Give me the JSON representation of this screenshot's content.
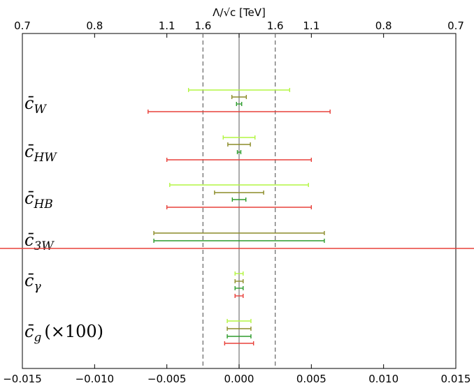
{
  "chart_data": {
    "type": "errorbar",
    "top_axis_title": "Λ/√c [TeV]",
    "top_tick_labels": [
      {
        "x": -0.015,
        "label": "0.7"
      },
      {
        "x": -0.01,
        "label": "0.8"
      },
      {
        "x": -0.005,
        "label": "1.1"
      },
      {
        "x": -0.0025,
        "label": "1.6"
      },
      {
        "x": 0.0025,
        "label": "1.6"
      },
      {
        "x": 0.005,
        "label": "1.1"
      },
      {
        "x": 0.01,
        "label": "0.8"
      },
      {
        "x": 0.015,
        "label": "0.7"
      }
    ],
    "bottom_ticks": [
      -0.015,
      -0.01,
      -0.005,
      0.0,
      0.005,
      0.01,
      0.015
    ],
    "bottom_tick_labels": [
      "−0.015",
      "−0.010",
      "−0.005",
      "0.000",
      "0.005",
      "0.010",
      "0.015"
    ],
    "xlim": [
      -0.015,
      0.015
    ],
    "dashed_lines": [
      -0.0025,
      0.0025
    ],
    "zero_line": 0.0,
    "colors": {
      "lightgreen": "#b3f542",
      "olive": "#8c8c28",
      "green": "#2d9c2d",
      "red": "#e8403a",
      "zero_line": "#808080",
      "dashed": "#707070"
    },
    "groups": [
      {
        "label_main": "c̄",
        "label_sub": "W",
        "label_suffix": "",
        "bars": [
          {
            "color": "lightgreen",
            "lo": -0.0035,
            "hi": 0.0035
          },
          {
            "color": "olive",
            "lo": -0.0005,
            "hi": 0.0005
          },
          {
            "color": "green",
            "lo": -0.00018,
            "hi": 0.00018
          },
          {
            "color": "red",
            "lo": -0.0063,
            "hi": 0.0063
          }
        ]
      },
      {
        "label_main": "c̄",
        "label_sub": "HW",
        "label_suffix": "",
        "bars": [
          {
            "color": "lightgreen",
            "lo": -0.0011,
            "hi": 0.0011
          },
          {
            "color": "olive",
            "lo": -0.00078,
            "hi": 0.00078
          },
          {
            "color": "green",
            "lo": -0.00012,
            "hi": 0.00012
          },
          {
            "color": "red",
            "lo": -0.005,
            "hi": 0.005
          }
        ]
      },
      {
        "label_main": "c̄",
        "label_sub": "HB",
        "label_suffix": "",
        "bars": [
          {
            "color": "lightgreen",
            "lo": -0.0048,
            "hi": 0.0048
          },
          {
            "color": "olive",
            "lo": -0.0017,
            "hi": 0.0017
          },
          {
            "color": "green",
            "lo": -0.00047,
            "hi": 0.00047
          },
          {
            "color": "red",
            "lo": -0.005,
            "hi": 0.005
          }
        ]
      },
      {
        "label_main": "c̄",
        "label_sub": "3W",
        "label_suffix": "",
        "bars": [
          {
            "color": "olive",
            "lo": -0.0059,
            "hi": 0.0059
          },
          {
            "color": "green",
            "lo": -0.0059,
            "hi": 0.0059
          },
          {
            "color": "red",
            "lo": -0.015,
            "hi": 0.015,
            "unbounded": true
          }
        ]
      },
      {
        "label_main": "c̄",
        "label_sub": "γ",
        "label_suffix": "",
        "bars": [
          {
            "color": "lightgreen",
            "lo": -0.00028,
            "hi": 0.00028
          },
          {
            "color": "olive",
            "lo": -0.00028,
            "hi": 0.00028
          },
          {
            "color": "green",
            "lo": -0.00028,
            "hi": 0.00028
          },
          {
            "color": "red",
            "lo": -0.00028,
            "hi": 0.00028
          }
        ]
      },
      {
        "label_main": "c̄",
        "label_sub": "g",
        "label_suffix": "(×100)",
        "bars": [
          {
            "color": "lightgreen",
            "lo": -0.00082,
            "hi": 0.00082
          },
          {
            "color": "olive",
            "lo": -0.00082,
            "hi": 0.00082
          },
          {
            "color": "green",
            "lo": -0.00082,
            "hi": 0.00082
          },
          {
            "color": "red",
            "lo": -0.001,
            "hi": 0.001
          }
        ]
      }
    ]
  }
}
